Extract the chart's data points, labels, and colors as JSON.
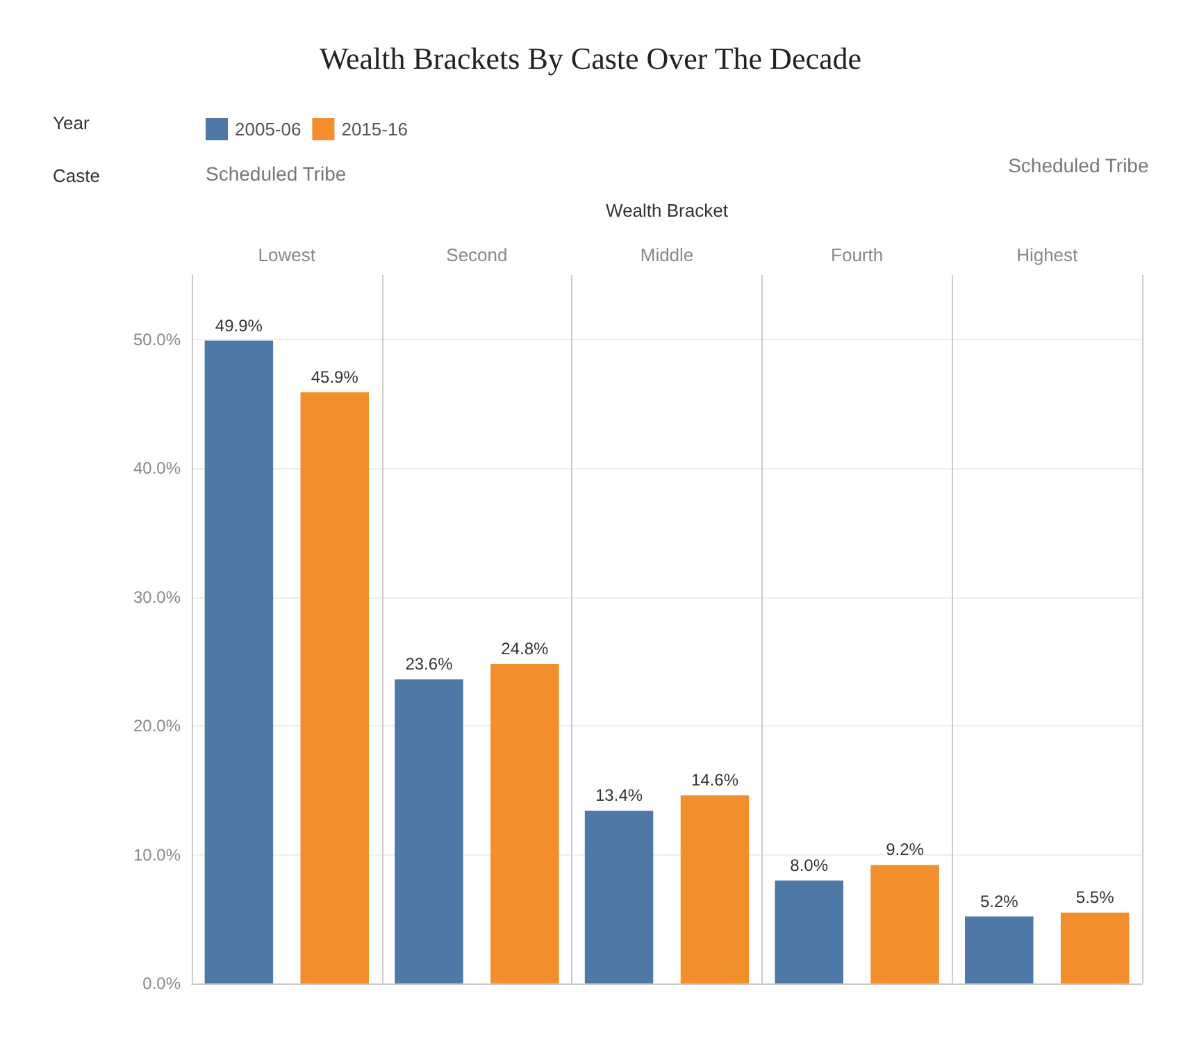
{
  "chart_data": {
    "type": "bar",
    "title": "Wealth Brackets By Caste Over The Decade",
    "xlabel": "Wealth Bracket",
    "legend_title": "Year",
    "annotations": [
      "Caste",
      "Scheduled Tribe",
      "Scheduled Tribe"
    ],
    "categories": [
      "Lowest",
      "Second",
      "Middle",
      "Fourth",
      "Highest"
    ],
    "series": [
      {
        "name": "2005-06",
        "color": "#4e79a7",
        "values": [
          49.9,
          23.6,
          13.4,
          8.0,
          5.2
        ],
        "value_labels": [
          "49.9%",
          "23.6%",
          "13.4%",
          "8.0%",
          "5.2%"
        ]
      },
      {
        "name": "2015-16",
        "color": "#f28e2b",
        "values": [
          45.9,
          24.8,
          14.6,
          9.2,
          5.5
        ],
        "value_labels": [
          "45.9%",
          "24.8%",
          "14.6%",
          "9.2%",
          "5.5%"
        ]
      }
    ],
    "ylim": [
      0,
      55
    ],
    "yticks": [
      {
        "value": 0,
        "label": "0.0%"
      },
      {
        "value": 10,
        "label": "10.0%"
      },
      {
        "value": 20,
        "label": "20.0%"
      },
      {
        "value": 30,
        "label": "30.0%"
      },
      {
        "value": 40,
        "label": "40.0%"
      },
      {
        "value": 50,
        "label": "50.0%"
      }
    ],
    "grid": true,
    "legend": "top left"
  }
}
